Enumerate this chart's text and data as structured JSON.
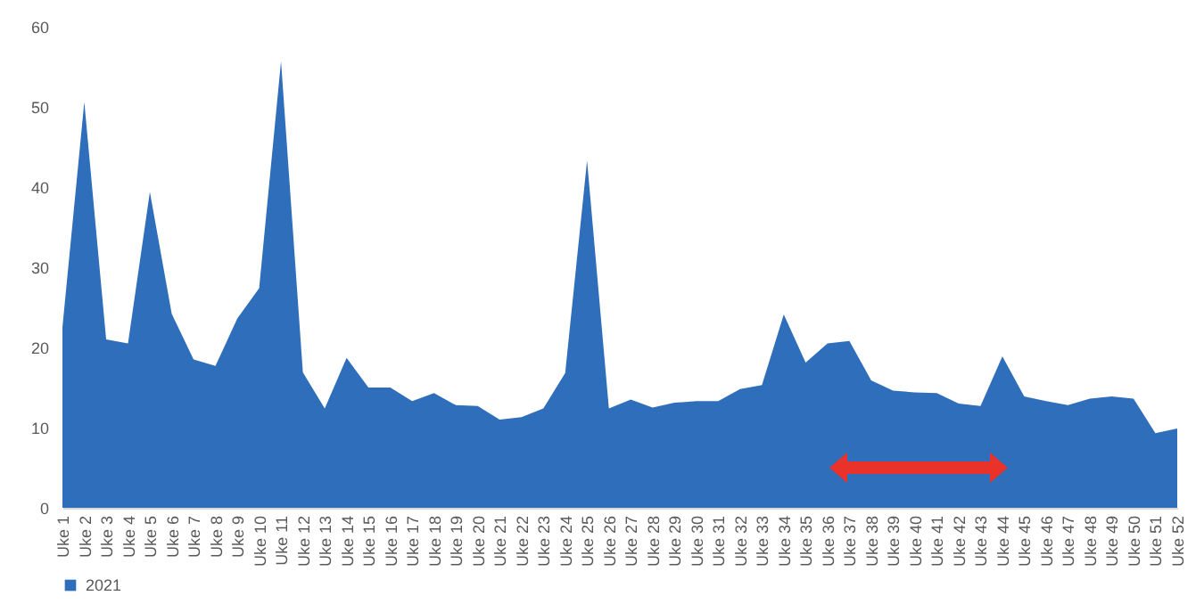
{
  "chart_data": {
    "type": "area",
    "categories": [
      "Uke 1",
      "Uke 2",
      "Uke 3",
      "Uke 4",
      "Uke 5",
      "Uke 6",
      "Uke 7",
      "Uke 8",
      "Uke 9",
      "Uke 10",
      "Uke 11",
      "Uke 12",
      "Uke 13",
      "Uke 14",
      "Uke 15",
      "Uke 16",
      "Uke 17",
      "Uke 18",
      "Uke 19",
      "Uke 20",
      "Uke 21",
      "Uke 22",
      "Uke 23",
      "Uke 24",
      "Uke 25",
      "Uke 26",
      "Uke 27",
      "Uke 28",
      "Uke 29",
      "Uke 30",
      "Uke 31",
      "Uke 32",
      "Uke 33",
      "Uke 34",
      "Uke 35",
      "Uke 36",
      "Uke 37",
      "Uke 38",
      "Uke 39",
      "Uke 40",
      "Uke 41",
      "Uke 42",
      "Uke 43",
      "Uke 44",
      "Uke 45",
      "Uke 46",
      "Uke 47",
      "Uke 48",
      "Uke 49",
      "Uke 50",
      "Uke 51",
      "Uke 52"
    ],
    "series": [
      {
        "name": "2021",
        "color": "#2f6eba",
        "values": [
          22.5,
          50.6,
          21,
          20.5,
          39.4,
          24.2,
          18.5,
          17.7,
          23.6,
          27.4,
          55.7,
          16.9,
          12.4,
          18.7,
          15,
          15,
          13.3,
          14.3,
          12.8,
          12.7,
          11,
          11.3,
          12.4,
          16.8,
          43.3,
          12.4,
          13.5,
          12.5,
          13.1,
          13.3,
          13.3,
          14.8,
          15.3,
          24.1,
          18.1,
          20.5,
          20.8,
          15.9,
          14.6,
          14.4,
          14.3,
          13,
          12.7,
          18.9,
          13.9,
          13.3,
          12.8,
          13.6,
          13.9,
          13.6,
          9.3,
          9.9
        ]
      }
    ],
    "ylim": [
      0,
      60
    ],
    "yticks": [
      0,
      10,
      20,
      30,
      40,
      50,
      60
    ],
    "grid": false,
    "legend": "bottom"
  }
}
